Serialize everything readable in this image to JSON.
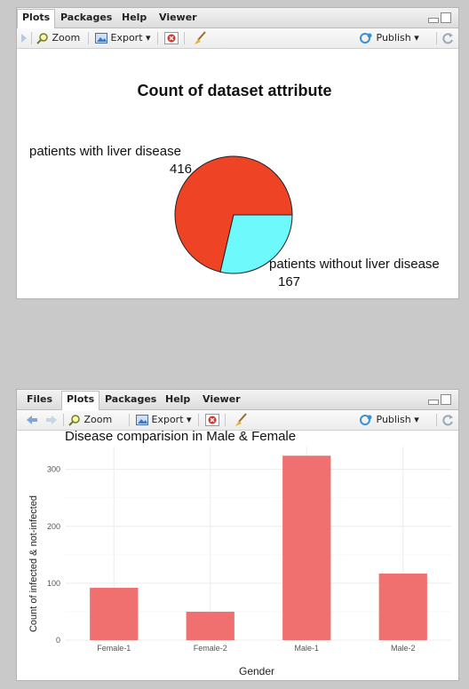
{
  "top_panel": {
    "tabs": [
      "Plots",
      "Packages",
      "Help",
      "Viewer"
    ],
    "toolbar": {
      "zoom": "Zoom",
      "export": "Export ▾",
      "publish": "Publish ▾"
    }
  },
  "bottom_panel": {
    "tabs": [
      "Files",
      "Plots",
      "Packages",
      "Help",
      "Viewer"
    ],
    "toolbar": {
      "zoom": "Zoom",
      "export": "Export ▾",
      "publish": "Publish ▾"
    }
  },
  "colors": {
    "pie_liver": "#ee4325",
    "pie_no_liver": "#6ef9fd",
    "bar": "#f07070"
  },
  "chart_data": [
    {
      "type": "pie",
      "title": "Count of dataset attribute",
      "categories": [
        "patients with liver disease",
        "patients without liver disease"
      ],
      "values": [
        416,
        167
      ],
      "value_labels": [
        "416",
        "167"
      ]
    },
    {
      "type": "bar",
      "title": "Disease comparision in Male & Female",
      "xlabel": "Gender",
      "ylabel": "Count of infected & not-infected",
      "categories": [
        "Female-1",
        "Female-2",
        "Male-1",
        "Male-2"
      ],
      "values": [
        92,
        50,
        324,
        117
      ],
      "ylim": [
        0,
        340
      ],
      "yticks": [
        0,
        100,
        200,
        300
      ],
      "grid": true
    }
  ]
}
